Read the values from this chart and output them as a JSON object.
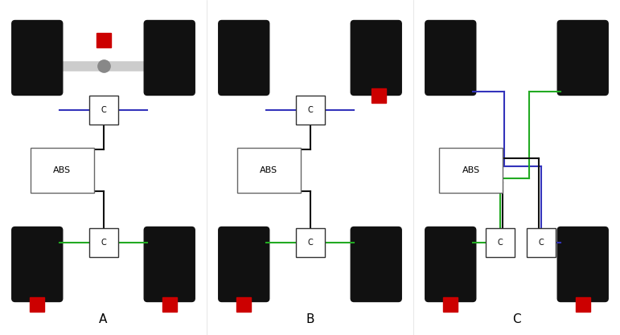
{
  "background_color": "#ffffff",
  "wheel_color": "#111111",
  "sensor_color": "#cc0000",
  "axle_color": "#cccccc",
  "diff_color": "#888888",
  "blue_line": "#3333bb",
  "green_line": "#22aa22",
  "black_line": "#111111",
  "abs_box_color": "#ffffff",
  "abs_box_edge": "#666666",
  "c_box_color": "#ffffff",
  "c_box_edge": "#333333",
  "label_A": "A",
  "label_B": "B",
  "label_C": "C"
}
